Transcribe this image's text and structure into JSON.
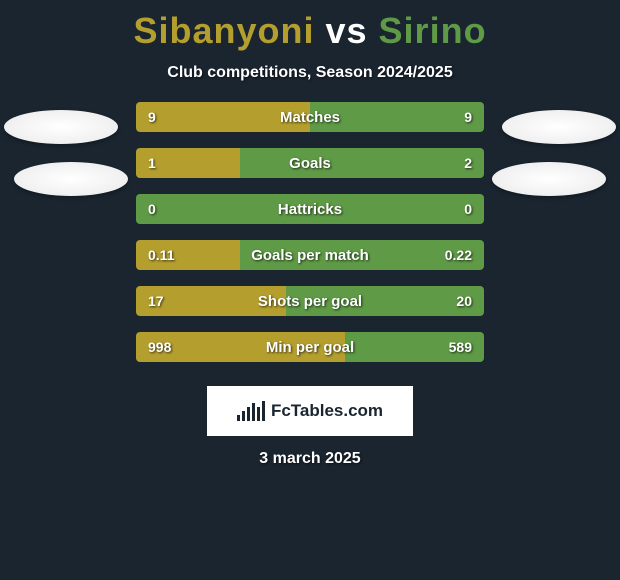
{
  "title": {
    "player1": "Sibanyoni",
    "vs": "vs",
    "player2": "Sirino",
    "color1": "#b49f2e",
    "color_vs": "#ffffff",
    "color2": "#5f9a46"
  },
  "subtitle": "Club competitions, Season 2024/2025",
  "colors": {
    "left": "#b49f2e",
    "right": "#5f9a46",
    "background": "#1a2530"
  },
  "stats": [
    {
      "label": "Matches",
      "left_val": "9",
      "right_val": "9",
      "left_pct": 50,
      "right_pct": 50
    },
    {
      "label": "Goals",
      "left_val": "1",
      "right_val": "2",
      "left_pct": 30,
      "right_pct": 70
    },
    {
      "label": "Hattricks",
      "left_val": "0",
      "right_val": "0",
      "left_pct": 0,
      "right_pct": 100
    },
    {
      "label": "Goals per match",
      "left_val": "0.11",
      "right_val": "0.22",
      "left_pct": 30,
      "right_pct": 70
    },
    {
      "label": "Shots per goal",
      "left_val": "17",
      "right_val": "20",
      "left_pct": 43,
      "right_pct": 57
    },
    {
      "label": "Min per goal",
      "left_val": "998",
      "right_val": "589",
      "left_pct": 60,
      "right_pct": 40
    }
  ],
  "brand": "FcTables.com",
  "brand_bars": [
    6,
    10,
    14,
    18,
    14,
    20
  ],
  "date": "3 march 2025"
}
